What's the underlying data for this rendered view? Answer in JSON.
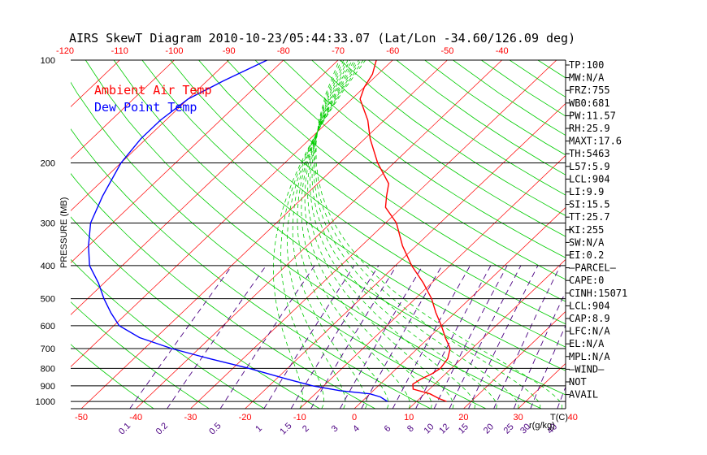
{
  "chart_data": {
    "type": "line",
    "title": "AIRS SkewT Diagram 2010-10-23/05:44:33.07 (Lat/Lon -34.60/126.09 deg)",
    "ylabel": "PRESSURE (MB)",
    "x_unit_label": "T(C)",
    "mixing_ratio_unit_label": "r(g/kg)",
    "y_scale": "log",
    "ylim": [
      1050,
      100
    ],
    "xlim": [
      -55,
      50
    ],
    "y_ticks": [
      100,
      200,
      300,
      400,
      500,
      600,
      700,
      800,
      900,
      1000
    ],
    "x_ticks_bottom": [
      -50,
      -40,
      -30,
      -20,
      -10,
      0,
      10,
      20,
      30,
      40
    ],
    "x_ticks_top": [
      -120,
      -110,
      -100,
      -90,
      -80,
      -70,
      -60,
      -50,
      -40
    ],
    "mixing_ratio_labels": [
      "0.1",
      "0.2",
      "0.5",
      "1",
      "1.5",
      "2",
      "3",
      "4",
      "6",
      "8",
      "10",
      "12",
      "15",
      "20",
      "25",
      "30",
      "40"
    ],
    "grid": true,
    "legend": [
      {
        "name": "Ambient Air Temp",
        "color": "#ff0000"
      },
      {
        "name": "Dew Point Temp",
        "color": "#0000ff"
      }
    ],
    "series": [
      {
        "name": "Ambient Air Temp",
        "color": "#ff0000",
        "points": [
          [
            1000,
            15.5
          ],
          [
            980,
            13.5
          ],
          [
            950,
            11
          ],
          [
            920,
            7
          ],
          [
            890,
            6
          ],
          [
            860,
            6.5
          ],
          [
            830,
            7.5
          ],
          [
            800,
            8
          ],
          [
            750,
            7.5
          ],
          [
            700,
            6
          ],
          [
            650,
            3
          ],
          [
            600,
            0
          ],
          [
            550,
            -3.5
          ],
          [
            500,
            -7
          ],
          [
            450,
            -11.5
          ],
          [
            400,
            -17
          ],
          [
            350,
            -22.5
          ],
          [
            300,
            -28
          ],
          [
            270,
            -33
          ],
          [
            250,
            -35
          ],
          [
            230,
            -37
          ],
          [
            200,
            -43
          ],
          [
            170,
            -49
          ],
          [
            150,
            -53
          ],
          [
            130,
            -58.5
          ],
          [
            120,
            -60
          ],
          [
            110,
            -61
          ],
          [
            100,
            -63
          ]
        ]
      },
      {
        "name": "Dew Point Temp",
        "color": "#0000ff",
        "points": [
          [
            1000,
            4.7
          ],
          [
            970,
            2.5
          ],
          [
            950,
            0
          ],
          [
            930,
            -6
          ],
          [
            900,
            -12
          ],
          [
            860,
            -18
          ],
          [
            800,
            -27
          ],
          [
            750,
            -36
          ],
          [
            700,
            -45
          ],
          [
            650,
            -53
          ],
          [
            600,
            -59
          ],
          [
            550,
            -63
          ],
          [
            500,
            -67
          ],
          [
            450,
            -71
          ],
          [
            400,
            -76
          ],
          [
            350,
            -80
          ],
          [
            300,
            -84
          ],
          [
            250,
            -87
          ],
          [
            200,
            -90
          ],
          [
            170,
            -91
          ],
          [
            150,
            -91
          ],
          [
            130,
            -90
          ],
          [
            115,
            -87
          ],
          [
            100,
            -83
          ]
        ]
      }
    ]
  },
  "indices": [
    "TP:100",
    "MW:N/A",
    "FRZ:755",
    "WB0:681",
    "PW:11.57",
    "RH:25.9",
    "MAXT:17.6",
    "TH:5463",
    "L57:5.9",
    "LCL:904",
    "LI:9.9",
    "SI:15.5",
    "TT:25.7",
    "KI:255",
    "SW:N/A",
    "EI:0.2",
    "—PARCEL—",
    "CAPE:0",
    "CINH:15071",
    "LCL:904",
    "CAP:8.9",
    "LFC:N/A",
    "EL:N/A",
    "MPL:N/A",
    "—WIND—",
    "NOT",
    "AVAIL"
  ],
  "colors": {
    "isotherm": "#ff0000",
    "dry_adiabat": "#00cc00",
    "moist_adiabat": "#00cc00",
    "mixing_ratio": "#4b0082",
    "temp_profile": "#ff0000",
    "dewpoint_profile": "#0000ff",
    "axis": "#000000",
    "tick_top": "#ff0000",
    "tick_bottom": "#ff0000",
    "tick_mixing": "#4b0082"
  }
}
